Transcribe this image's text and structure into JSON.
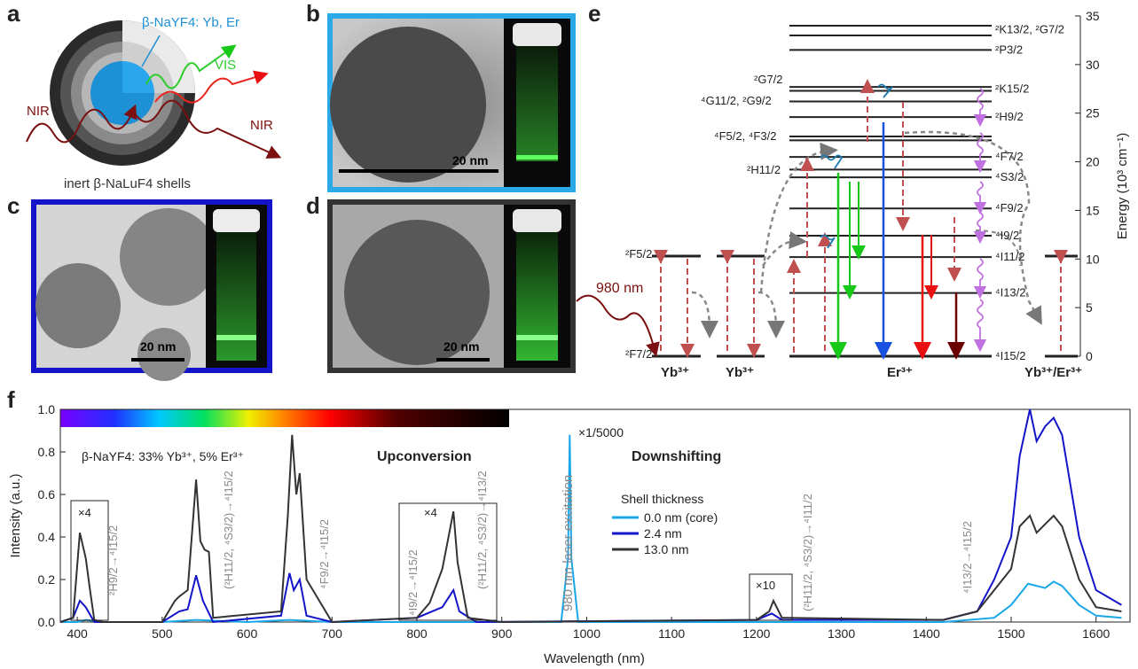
{
  "panel_letters": {
    "a": "a",
    "b": "b",
    "c": "c",
    "d": "d",
    "e": "e",
    "f": "f"
  },
  "panel_a": {
    "core_label": "β-NaYF4: Yb, Er",
    "vis": "VIS",
    "nir_in": "NIR",
    "nir_out": "NIR",
    "shell_label": "inert β-NaLuF4 shells",
    "colors": {
      "core": "#1e90d6",
      "vis": "#2ecc2e",
      "red": "#e8261e",
      "nir": "#7a1010"
    }
  },
  "panel_b": {
    "scale": "20 nm",
    "frame_color": "#2aa8e8"
  },
  "panel_c": {
    "scale": "20 nm",
    "frame_color": "#1414c8"
  },
  "panel_d": {
    "scale": "20 nm",
    "frame_color": "#333333"
  },
  "panel_e": {
    "axis_label": "Energy (10³ cm⁻¹)",
    "yticks": [
      0,
      5,
      10,
      15,
      20,
      25,
      30,
      35
    ],
    "ions": [
      "Yb³⁺",
      "Yb³⁺",
      "Er³⁺",
      "Yb³⁺/Er³⁺"
    ],
    "excitation": "980 nm",
    "yb_levels": [
      "²F5/2",
      "²F7/2"
    ],
    "er_levels_right": [
      "²K13/2, ²G7/2",
      "²P3/2",
      "²K15/2",
      "²H9/2",
      "⁴F7/2",
      "⁴S3/2",
      "⁴F9/2",
      "⁴I9/2",
      "⁴I11/2",
      "⁴I13/2",
      "⁴I15/2"
    ],
    "er_levels_left": [
      "²G7/2",
      "⁴G11/2, ²G9/2",
      "⁴F5/2, ⁴F3/2",
      "²H11/2"
    ],
    "level_energies": [
      0,
      6.5,
      10.2,
      12.4,
      15.2,
      18.4,
      19.2,
      20.5,
      22.2,
      22.6,
      24.6,
      26.2,
      27.3,
      27.7,
      31.5,
      33.0,
      34.0
    ]
  },
  "panel_f": {
    "title_sample": "β-NaYF4: 33% Yb³⁺, 5% Er³⁺",
    "upconversion": "Upconversion",
    "downshifting": "Downshifting",
    "laser": "980 nm laser excitation",
    "laser_scale": "×1/5000",
    "x4a": "×4",
    "x4b": "×4",
    "x10": "×10",
    "legend_title": "Shell thickness",
    "transitions": [
      "²H9/2→⁴I15/2",
      "(²H11/2, ⁴S3/2)→⁴I15/2",
      "⁴F9/2→⁴I15/2",
      "⁴I9/2→⁴I15/2",
      "(²H11/2, ⁴S3/2)→⁴I13/2",
      "(²H11/2, ⁴S3/2)→⁴I11/2",
      "⁴I13/2→⁴I15/2"
    ]
  },
  "chart_data": {
    "type": "line",
    "xlabel": "Wavelength (nm)",
    "ylabel": "Intensity (a.u.)",
    "xlim": [
      380,
      1640
    ],
    "ylim": [
      0,
      1.0
    ],
    "xticks": [
      400,
      500,
      600,
      700,
      800,
      900,
      1000,
      1100,
      1200,
      1300,
      1400,
      1500,
      1600
    ],
    "yticks": [
      0.0,
      0.2,
      0.4,
      0.6,
      0.8,
      1.0
    ],
    "series": [
      {
        "name": "0.0 nm (core)",
        "color": "#1aa7e8",
        "x": [
          380,
          400,
          410,
          430,
          500,
          540,
          600,
          650,
          700,
          800,
          840,
          900,
          970,
          978,
          980,
          982,
          990,
          1100,
          1200,
          1220,
          1300,
          1420,
          1480,
          1500,
          1520,
          1540,
          1550,
          1560,
          1580,
          1600,
          1630
        ],
        "y": [
          0,
          0,
          0.01,
          0,
          0,
          0.01,
          0,
          0.01,
          0,
          0,
          0,
          0,
          0,
          0.3,
          0.88,
          0.3,
          0,
          0,
          0,
          0,
          0,
          0,
          0.02,
          0.08,
          0.18,
          0.16,
          0.19,
          0.17,
          0.08,
          0.03,
          0.02
        ]
      },
      {
        "name": "2.4 nm",
        "color": "#1414c8",
        "x": [
          380,
          395,
          403,
          410,
          420,
          500,
          520,
          530,
          540,
          548,
          560,
          640,
          650,
          655,
          662,
          670,
          700,
          800,
          830,
          843,
          850,
          870,
          1200,
          1218,
          1230,
          1420,
          1460,
          1480,
          1500,
          1510,
          1522,
          1530,
          1540,
          1550,
          1560,
          1580,
          1600,
          1630
        ],
        "y": [
          0,
          0.02,
          0.1,
          0.07,
          0,
          0,
          0.05,
          0.06,
          0.22,
          0.1,
          0,
          0.03,
          0.23,
          0.15,
          0.2,
          0.03,
          0,
          0.02,
          0.07,
          0.15,
          0.05,
          0,
          0.01,
          0.04,
          0.01,
          0.01,
          0.05,
          0.2,
          0.4,
          0.78,
          1.0,
          0.85,
          0.92,
          0.96,
          0.88,
          0.4,
          0.15,
          0.08
        ]
      },
      {
        "name": "13.0 nm",
        "color": "#333333",
        "x": [
          380,
          395,
          403,
          410,
          415,
          420,
          430,
          500,
          515,
          520,
          530,
          540,
          545,
          550,
          555,
          560,
          640,
          648,
          653,
          658,
          662,
          670,
          700,
          800,
          815,
          830,
          843,
          848,
          860,
          900,
          1200,
          1215,
          1220,
          1230,
          1420,
          1460,
          1480,
          1500,
          1510,
          1522,
          1530,
          1540,
          1550,
          1560,
          1580,
          1600,
          1630
        ],
        "y": [
          0,
          0.02,
          0.42,
          0.3,
          0.15,
          0.01,
          0,
          0,
          0.1,
          0.12,
          0.15,
          0.67,
          0.38,
          0.34,
          0.33,
          0.02,
          0.05,
          0.5,
          0.88,
          0.6,
          0.7,
          0.2,
          0,
          0.02,
          0.09,
          0.25,
          0.52,
          0.28,
          0.02,
          0,
          0.01,
          0.05,
          0.1,
          0.02,
          0.01,
          0.05,
          0.15,
          0.25,
          0.45,
          0.5,
          0.42,
          0.46,
          0.5,
          0.45,
          0.2,
          0.07,
          0.05
        ]
      }
    ],
    "legend": "inside upper center"
  }
}
